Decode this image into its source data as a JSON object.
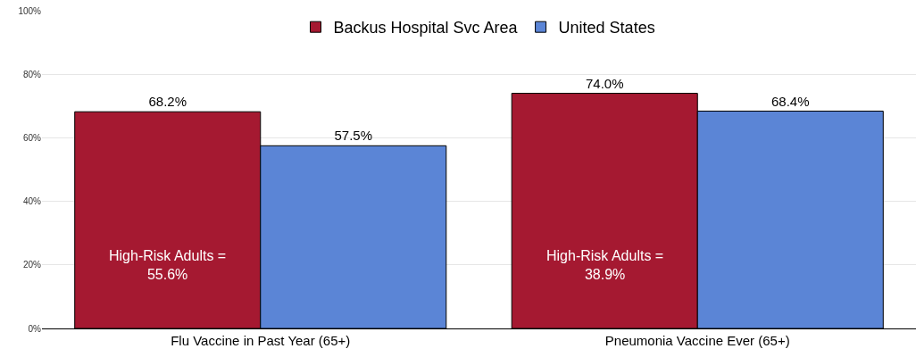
{
  "chart_data": {
    "type": "bar",
    "categories": [
      "Flu Vaccine in Past Year (65+)",
      "Pneumonia Vaccine Ever (65+)"
    ],
    "series": [
      {
        "name": "Backus Hospital Svc Area",
        "color": "#a51931",
        "values": [
          68.2,
          74.0
        ],
        "value_labels": [
          "68.2%",
          "74.0%"
        ]
      },
      {
        "name": "United States",
        "color": "#5b85d6",
        "values": [
          57.5,
          68.4
        ],
        "value_labels": [
          "57.5%",
          "68.4%"
        ]
      }
    ],
    "annotations": [
      "High-Risk Adults =\n55.6%",
      "High-Risk Adults =\n38.9%"
    ],
    "ylim": [
      0,
      100
    ],
    "yticks": [
      {
        "value": 0,
        "label": "0%"
      },
      {
        "value": 20,
        "label": "20%"
      },
      {
        "value": 40,
        "label": "40%"
      },
      {
        "value": 60,
        "label": "60%"
      },
      {
        "value": 80,
        "label": "80%"
      },
      {
        "value": 100,
        "label": "100%"
      }
    ],
    "grid": "y",
    "legend": "top"
  }
}
